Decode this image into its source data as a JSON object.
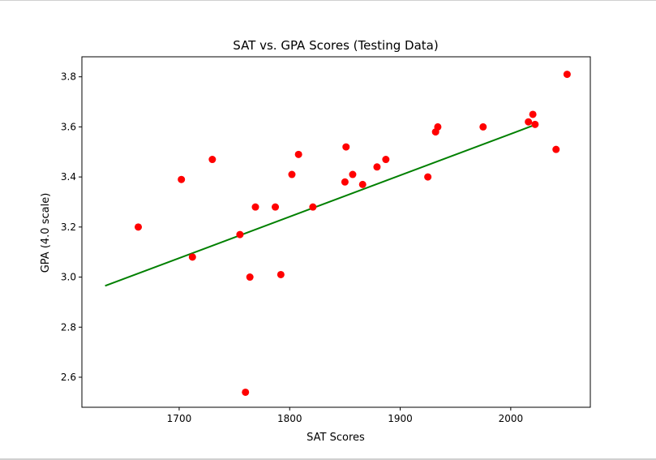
{
  "chart_data": {
    "type": "scatter",
    "title": "SAT vs. GPA Scores (Testing Data)",
    "xlabel": "SAT Scores",
    "ylabel": "GPA (4.0 scale)",
    "xlim": [
      1612,
      2072
    ],
    "ylim": [
      2.48,
      3.88
    ],
    "xticks": [
      1700,
      1800,
      1900,
      2000
    ],
    "yticks": [
      2.6,
      2.8,
      3.0,
      3.2,
      3.4,
      3.6,
      3.8
    ],
    "xtick_labels": [
      "1700",
      "1800",
      "1900",
      "2000"
    ],
    "ytick_labels": [
      "2.6",
      "2.8",
      "3.0",
      "3.2",
      "3.4",
      "3.6",
      "3.8"
    ],
    "grid": false,
    "series": [
      {
        "type": "scatter",
        "color": "#ff0000",
        "points": [
          {
            "x": 1663,
            "y": 3.2
          },
          {
            "x": 1702,
            "y": 3.39
          },
          {
            "x": 1712,
            "y": 3.08
          },
          {
            "x": 1730,
            "y": 3.47
          },
          {
            "x": 1755,
            "y": 3.17
          },
          {
            "x": 1760,
            "y": 2.54
          },
          {
            "x": 1764,
            "y": 3.0
          },
          {
            "x": 1769,
            "y": 3.28
          },
          {
            "x": 1787,
            "y": 3.28
          },
          {
            "x": 1792,
            "y": 3.01
          },
          {
            "x": 1802,
            "y": 3.41
          },
          {
            "x": 1808,
            "y": 3.49
          },
          {
            "x": 1821,
            "y": 3.28
          },
          {
            "x": 1850,
            "y": 3.38
          },
          {
            "x": 1851,
            "y": 3.52
          },
          {
            "x": 1857,
            "y": 3.41
          },
          {
            "x": 1866,
            "y": 3.37
          },
          {
            "x": 1879,
            "y": 3.44
          },
          {
            "x": 1887,
            "y": 3.47
          },
          {
            "x": 1925,
            "y": 3.4
          },
          {
            "x": 1932,
            "y": 3.58
          },
          {
            "x": 1934,
            "y": 3.6
          },
          {
            "x": 1975,
            "y": 3.6
          },
          {
            "x": 2016,
            "y": 3.62
          },
          {
            "x": 2020,
            "y": 3.65
          },
          {
            "x": 2022,
            "y": 3.61
          },
          {
            "x": 2041,
            "y": 3.51
          },
          {
            "x": 2051,
            "y": 3.81
          }
        ]
      },
      {
        "type": "line",
        "color": "#008000",
        "points": [
          {
            "x": 1633,
            "y": 2.965
          },
          {
            "x": 2020,
            "y": 3.605
          }
        ]
      }
    ]
  }
}
